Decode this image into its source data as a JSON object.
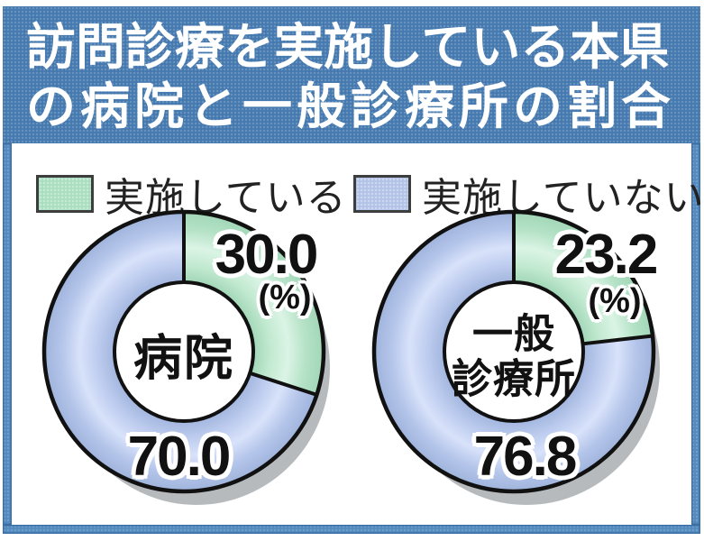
{
  "title": {
    "line1": "訪問診療を実施している本県",
    "line2": "の病院と一般診療所の割合"
  },
  "legend": {
    "implementing": {
      "label": "実施している",
      "color": "#abdec0"
    },
    "not_implementing": {
      "label": "実施していない",
      "color": "#b3c3e7"
    }
  },
  "charts": [
    {
      "name": "hospital",
      "center_label_lines": [
        "病院"
      ],
      "value_implementing": "30.0",
      "unit": "(%)",
      "value_not_implementing": "70.0"
    },
    {
      "name": "general-clinic",
      "center_label_lines": [
        "一般",
        "診療所"
      ],
      "value_implementing": "23.2",
      "unit": "(%)",
      "value_not_implementing": "76.8"
    }
  ],
  "chart_data": [
    {
      "type": "pie",
      "variant": "donut",
      "title": "病院",
      "unit": "%",
      "slices": [
        {
          "label": "実施している",
          "value": 30.0,
          "color": "#abdec0"
        },
        {
          "label": "実施していない",
          "value": 70.0,
          "color": "#a9bce2"
        }
      ],
      "start_angle_deg": 0,
      "direction": "clockwise",
      "data_labels": [
        "30.0",
        "(%)",
        "70.0"
      ]
    },
    {
      "type": "pie",
      "variant": "donut",
      "title": "一般診療所",
      "unit": "%",
      "slices": [
        {
          "label": "実施している",
          "value": 23.2,
          "color": "#abdec0"
        },
        {
          "label": "実施していない",
          "value": 76.8,
          "color": "#a9bce2"
        }
      ],
      "start_angle_deg": 0,
      "direction": "clockwise",
      "data_labels": [
        "23.2",
        "(%)",
        "76.8"
      ]
    }
  ],
  "colors": {
    "frame_blue": "#4478ae",
    "border_blue": "#5289bf",
    "slice_green": "#abdec0",
    "slice_blue": "#a9bce2",
    "outline_black": "#111111",
    "shadow_gray": "#b7babc",
    "title_text": "#ffffff"
  }
}
